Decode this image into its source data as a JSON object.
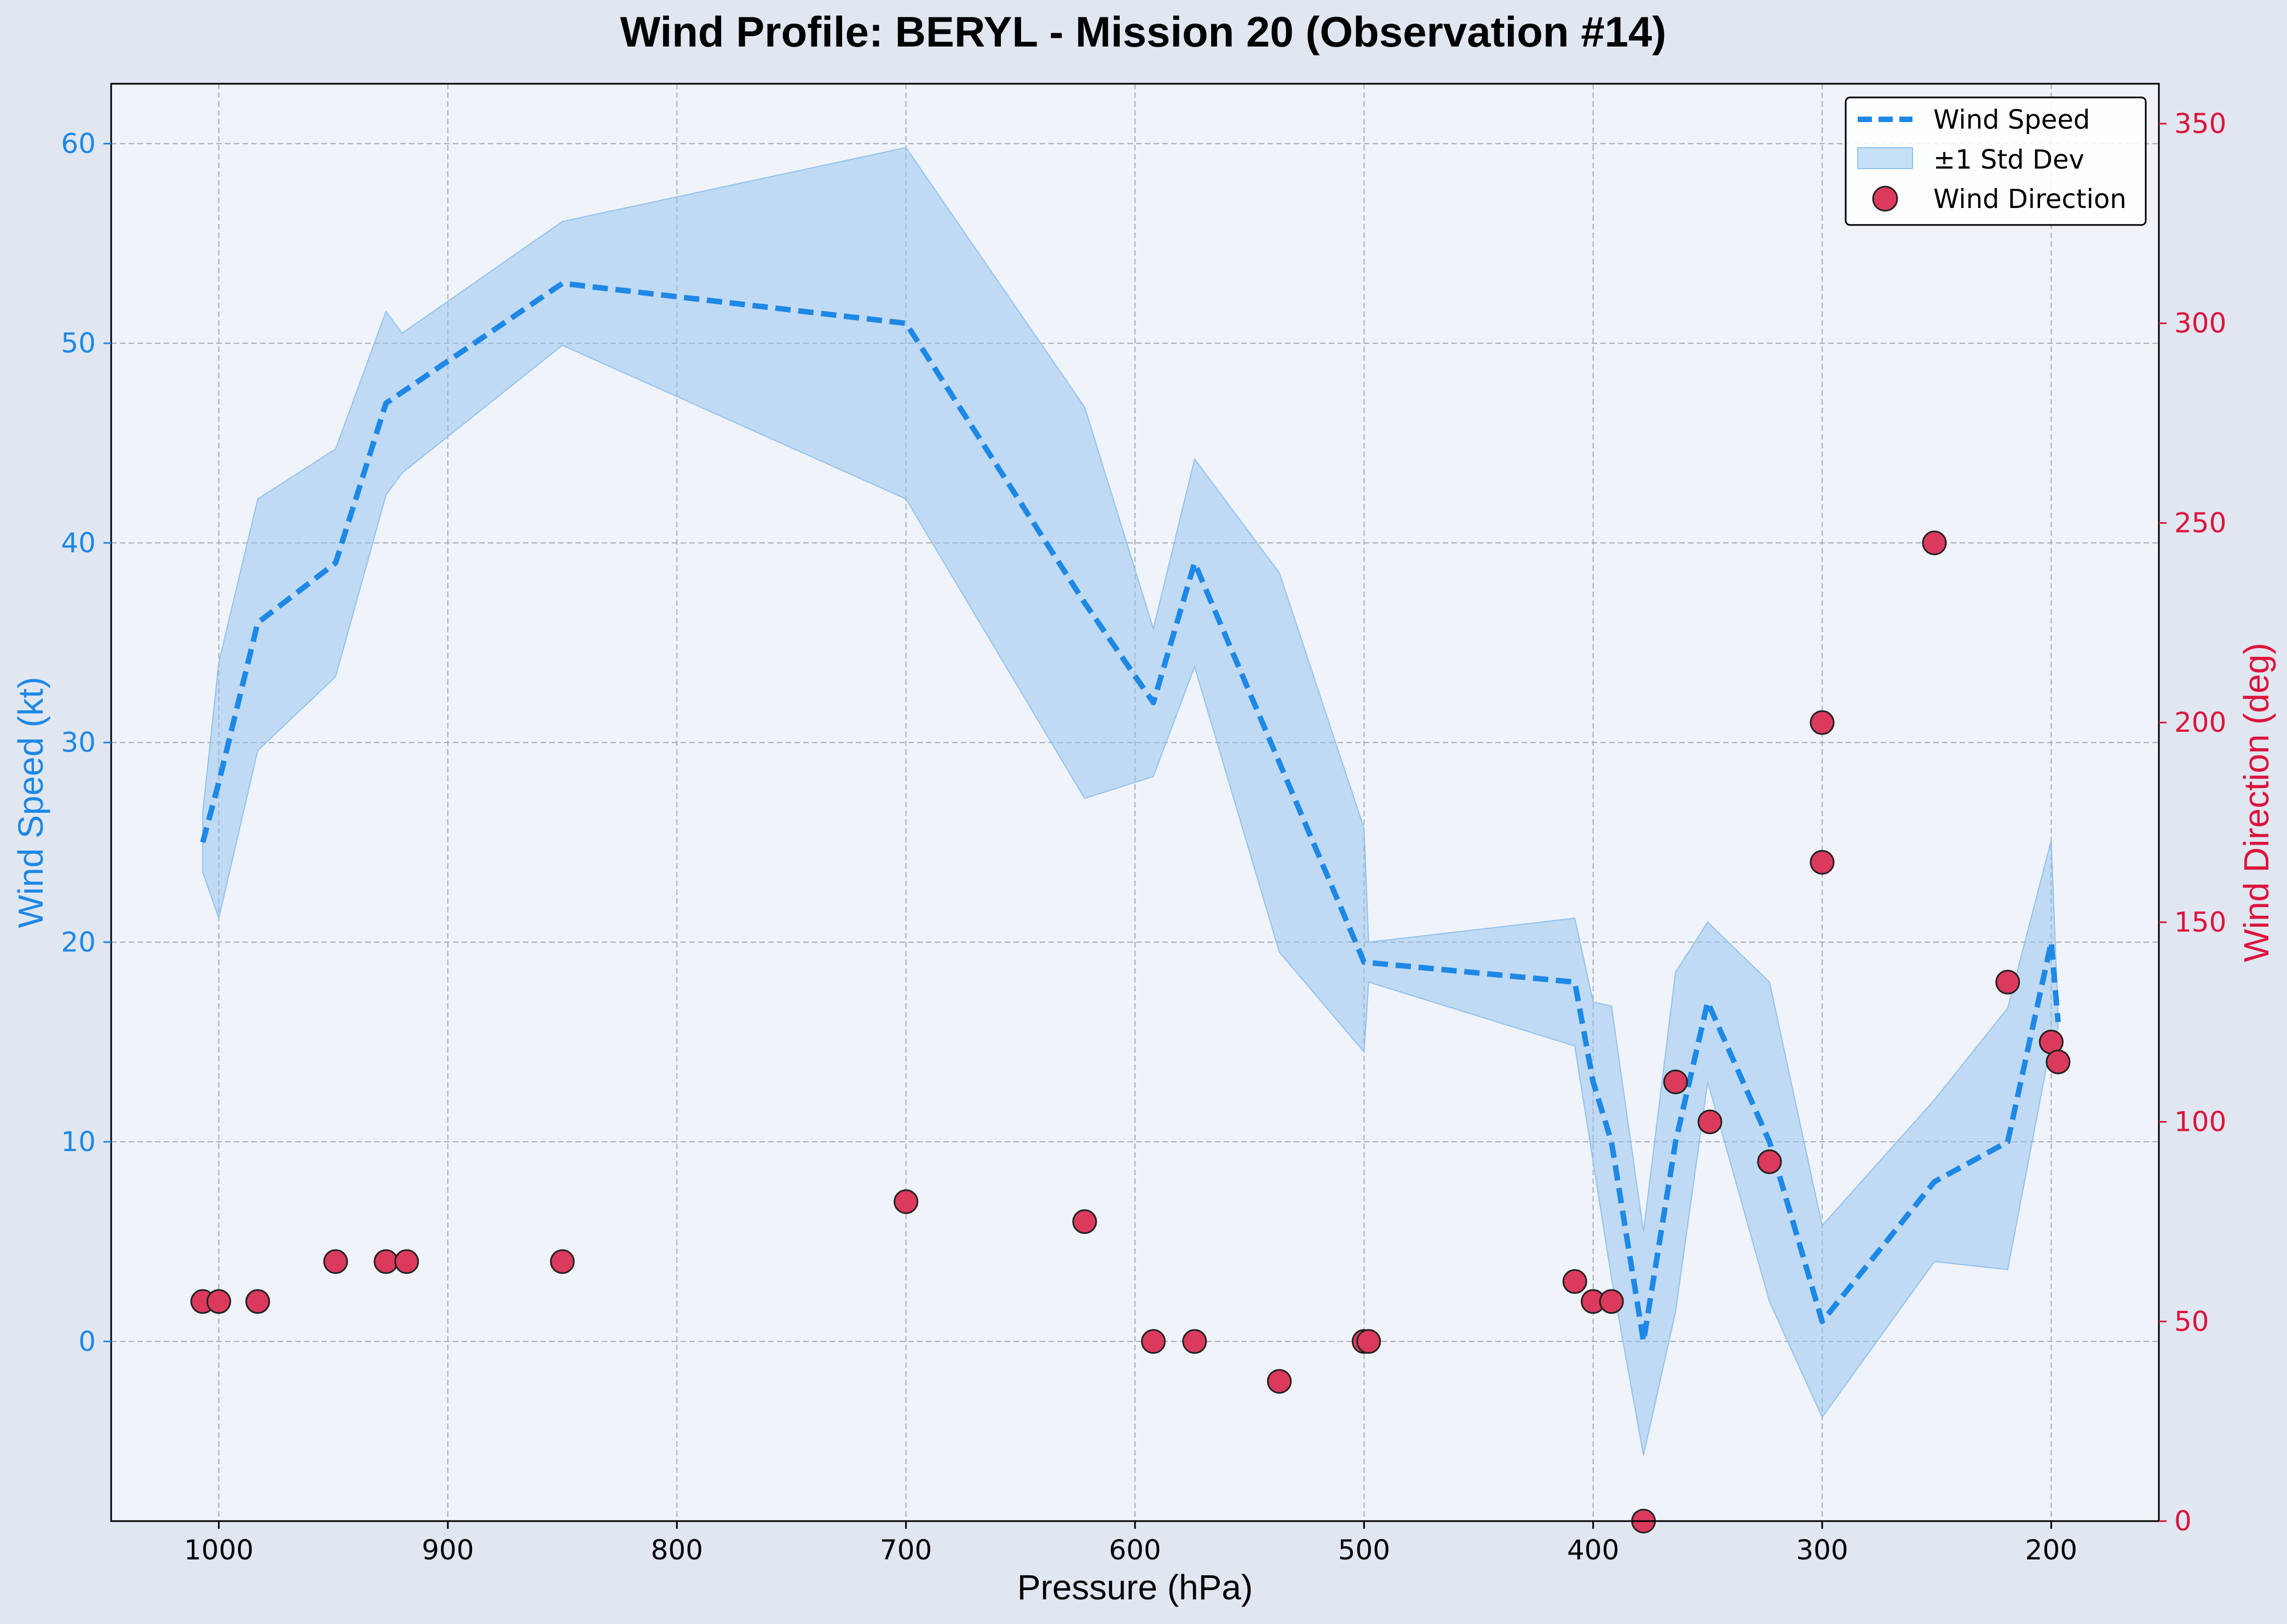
{
  "chart_data": {
    "type": "line",
    "title": "Wind Profile: BERYL - Mission 20 (Observation #14)",
    "xlabel": "Pressure (hPa)",
    "ylabel": "Wind Speed (kt)",
    "ylabel_right": "Wind Direction (deg)",
    "x_inverted": true,
    "xlim": [
      1047,
      153
    ],
    "ylim": [
      -9,
      63
    ],
    "ylim_right": [
      0,
      360
    ],
    "x_ticks": [
      1000,
      900,
      800,
      700,
      600,
      500,
      400,
      300,
      200
    ],
    "y_ticks": [
      0,
      10,
      20,
      30,
      40,
      50,
      60
    ],
    "y_ticks_right": [
      0,
      50,
      100,
      150,
      200,
      250,
      300,
      350
    ],
    "grid": true,
    "legend_position": "top-right",
    "legend": [
      "Wind Speed",
      "±1 Std Dev",
      "Wind Direction"
    ],
    "colors": {
      "speed": "#1e88e5",
      "band": "#90c2f0",
      "direction": "#dc143c",
      "right_axis": "#dc143c",
      "left_axis": "#1e88e5"
    },
    "series": [
      {
        "name": "Wind Speed",
        "style": "dashed-line",
        "x": [
          1007,
          1000,
          983,
          949,
          927,
          850,
          700,
          622,
          592,
          574,
          537,
          500,
          408,
          400,
          392,
          378,
          364,
          350,
          323,
          300,
          251,
          219,
          200,
          197
        ],
        "y": [
          25,
          28,
          36,
          39,
          47,
          53,
          51,
          37,
          32,
          39,
          29,
          19,
          18,
          13,
          10,
          0,
          10,
          17,
          10,
          1,
          8,
          10,
          20,
          16
        ]
      },
      {
        "name": "±1 Std Dev",
        "style": "band",
        "x": [
          1007,
          1000,
          983,
          949,
          927,
          920,
          850,
          700,
          622,
          592,
          574,
          537,
          500,
          498,
          408,
          400,
          392,
          378,
          364,
          350,
          323,
          300,
          251,
          219,
          200,
          197
        ],
        "upper": [
          26.5,
          34,
          42.2,
          44.7,
          51.6,
          50.5,
          56.1,
          59.8,
          46.8,
          35.7,
          44.2,
          38.5,
          25.7,
          20,
          21.2,
          17,
          16.8,
          5.5,
          18.5,
          21,
          18,
          5.8,
          12.1,
          16.7,
          25.1,
          16.3
        ],
        "lower": [
          23.5,
          21.2,
          29.6,
          33.3,
          42.4,
          43.5,
          49.9,
          42.2,
          27.2,
          28.3,
          33.8,
          19.5,
          14.5,
          18,
          14.8,
          9,
          3.2,
          -5.7,
          1.5,
          13,
          2,
          -3.8,
          4,
          3.6,
          15,
          15.7
        ]
      },
      {
        "name": "Wind Direction",
        "style": "scatter",
        "axis": "right",
        "x": [
          1007,
          1000,
          983,
          949,
          927,
          918,
          850,
          700,
          622,
          592,
          574,
          537,
          500,
          498,
          408,
          400,
          392,
          378,
          364,
          349,
          323,
          300,
          300,
          251,
          219,
          200,
          197
        ],
        "y": [
          55,
          55,
          55,
          65,
          65,
          65,
          65,
          80,
          75,
          45,
          45,
          35,
          45,
          45,
          60,
          55,
          55,
          0,
          110,
          100,
          90,
          200,
          165,
          245,
          135,
          120,
          115
        ]
      }
    ]
  }
}
